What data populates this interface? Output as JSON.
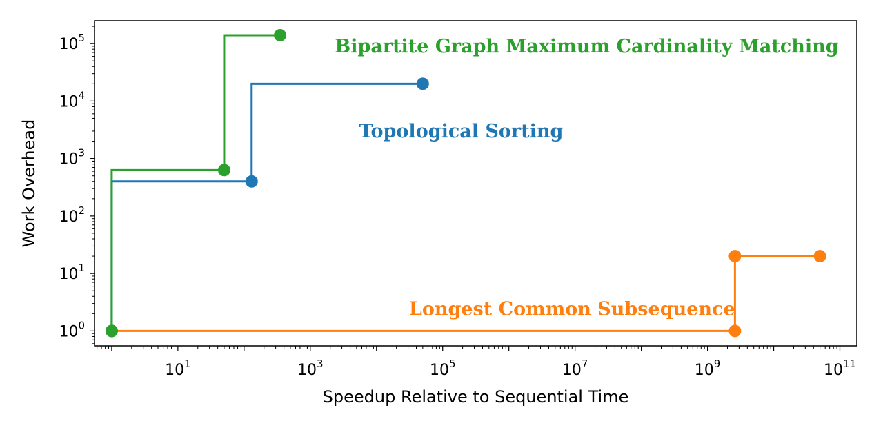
{
  "chart_data": {
    "type": "line",
    "xlabel": "Speedup Relative to Sequential Time",
    "ylabel": "Work Overhead",
    "xscale": "log",
    "yscale": "log",
    "xlim": [
      0.55,
      180000000000
    ],
    "ylim": [
      0.55,
      250000
    ],
    "grid": false,
    "legend": "none",
    "x_ticks": [
      {
        "base": "10",
        "exp": "1",
        "value": 10
      },
      {
        "base": "10",
        "exp": "3",
        "value": 1000
      },
      {
        "base": "10",
        "exp": "5",
        "value": 100000
      },
      {
        "base": "10",
        "exp": "7",
        "value": 10000000
      },
      {
        "base": "10",
        "exp": "9",
        "value": 1000000000
      },
      {
        "base": "10",
        "exp": "11",
        "value": 100000000000
      }
    ],
    "y_ticks": [
      {
        "base": "10",
        "exp": "0",
        "value": 1
      },
      {
        "base": "10",
        "exp": "1",
        "value": 10
      },
      {
        "base": "10",
        "exp": "2",
        "value": 100
      },
      {
        "base": "10",
        "exp": "3",
        "value": 1000
      },
      {
        "base": "10",
        "exp": "4",
        "value": 10000
      },
      {
        "base": "10",
        "exp": "5",
        "value": 100000
      }
    ],
    "series": [
      {
        "name": "Bipartite Graph Maximum Cardinality Matching",
        "color": "#2ca02c",
        "points": [
          {
            "x": 1,
            "y": 1
          },
          {
            "x": 50,
            "y": 630
          },
          {
            "x": 350,
            "y": 140000
          }
        ]
      },
      {
        "name": "Topological Sorting",
        "color": "#1f77b4",
        "points": [
          {
            "x": 1,
            "y": 1
          },
          {
            "x": 130,
            "y": 400
          },
          {
            "x": 50000,
            "y": 20000
          }
        ]
      },
      {
        "name": "Longest Common Subsequence",
        "color": "#ff7f0e",
        "points": [
          {
            "x": 1,
            "y": 1
          },
          {
            "x": 2600000000,
            "y": 1
          },
          {
            "x": 2600000000,
            "y": 20
          },
          {
            "x": 50000000000,
            "y": 20
          }
        ]
      }
    ],
    "annotations": [
      {
        "text": "Bipartite Graph Maximum Cardinality Matching",
        "x": 15000000,
        "y": 90000,
        "color": "#2ca02c"
      },
      {
        "text": "Topological Sorting",
        "x": 190000,
        "y": 3000,
        "color": "#1f77b4"
      },
      {
        "text": "Longest Common Subsequence",
        "x": 9000000,
        "y": 2.4,
        "color": "#ff7f0e"
      }
    ]
  }
}
